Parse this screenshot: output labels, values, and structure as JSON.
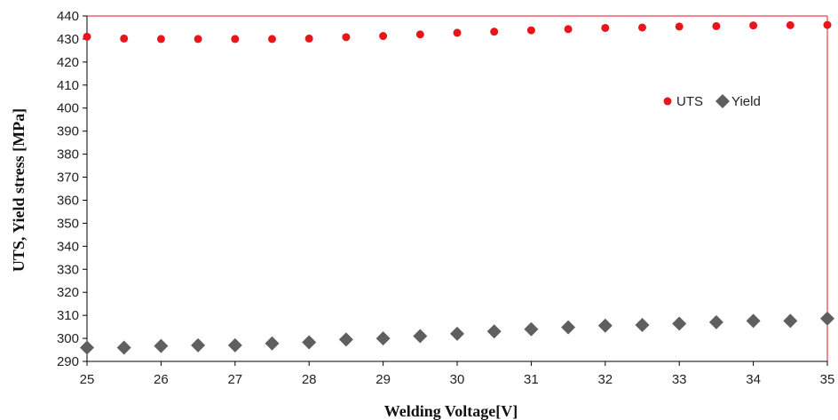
{
  "chart_data": {
    "type": "scatter",
    "xlabel": "Welding  Voltage[V]",
    "ylabel": "UTS, Yield stress  [MPa]",
    "xlim": [
      25,
      35
    ],
    "ylim": [
      290,
      440
    ],
    "x_ticks": [
      25,
      26,
      27,
      28,
      29,
      30,
      31,
      32,
      33,
      34,
      35
    ],
    "y_ticks": [
      290,
      300,
      310,
      320,
      330,
      340,
      350,
      360,
      370,
      380,
      390,
      400,
      410,
      420,
      430,
      440
    ],
    "grid": false,
    "legend_position": "right",
    "x": [
      25,
      25.5,
      26,
      26.5,
      27,
      27.5,
      28,
      28.5,
      29,
      29.5,
      30,
      30.5,
      31,
      31.5,
      32,
      32.5,
      33,
      33.5,
      34,
      34.5,
      35
    ],
    "series": [
      {
        "name": "UTS",
        "marker": "circle",
        "color": "#e8161b",
        "values": [
          431,
          430.2,
          430,
          430,
          430,
          430,
          430.2,
          430.8,
          431.3,
          432,
          432.7,
          433.2,
          433.8,
          434.3,
          434.8,
          435,
          435.4,
          435.6,
          435.9,
          436,
          436.1
        ]
      },
      {
        "name": "Yield",
        "marker": "diamond",
        "color": "#5f5f5f",
        "values": [
          296,
          296,
          296.7,
          297,
          297,
          297.8,
          298.3,
          299.5,
          300,
          301,
          302,
          303,
          304,
          304.8,
          305.5,
          305.8,
          306.4,
          307,
          307.6,
          307.6,
          308.6
        ]
      }
    ],
    "border_color": "#e8161b"
  }
}
